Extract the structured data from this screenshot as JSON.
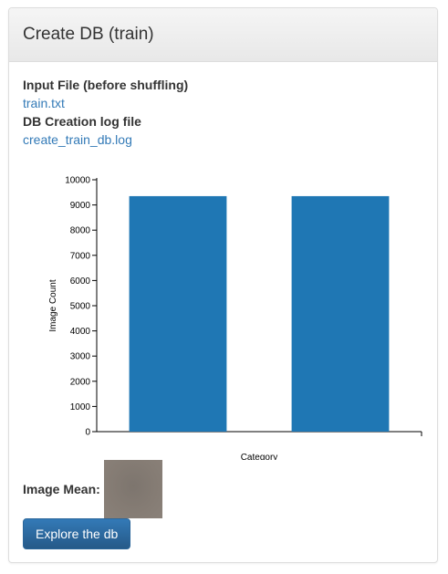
{
  "panel": {
    "title": "Create DB (train)"
  },
  "files": {
    "input_label": "Input File (before shuffling)",
    "input_link": "train.txt",
    "log_label": "DB Creation log file",
    "log_link": "create_train_db.log"
  },
  "chart_data": {
    "type": "bar",
    "categories": [
      "",
      ""
    ],
    "values": [
      9350,
      9350
    ],
    "xlabel": "Category",
    "ylabel": "Image Count",
    "ylim": [
      0,
      10000
    ],
    "yticks": [
      0,
      1000,
      2000,
      3000,
      4000,
      5000,
      6000,
      7000,
      8000,
      9000,
      10000
    ],
    "bar_color": "#1f77b4",
    "grid": false
  },
  "mean": {
    "label": "Image Mean:"
  },
  "actions": {
    "explore_label": "Explore the db"
  }
}
